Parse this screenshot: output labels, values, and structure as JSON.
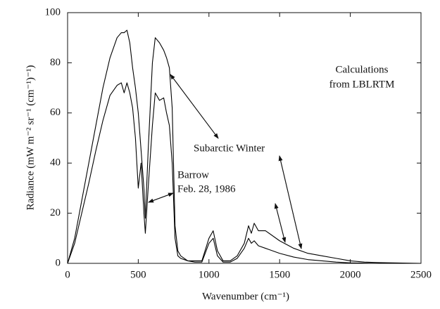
{
  "chart_data": {
    "type": "line",
    "xlabel": "Wavenumber (cm⁻¹)",
    "ylabel": "Radiance (mW m⁻² sr⁻¹ (cm⁻¹)⁻¹)",
    "annotations": [
      "Calculations",
      "from LBLRTM",
      "Feb. 28, 1986"
    ],
    "x": [
      0,
      50,
      100,
      150,
      200,
      250,
      300,
      350,
      380,
      400,
      420,
      440,
      460,
      480,
      500,
      520,
      540,
      550,
      570,
      600,
      620,
      650,
      680,
      700,
      720,
      740,
      760,
      780,
      800,
      850,
      900,
      950,
      1000,
      1030,
      1060,
      1100,
      1150,
      1200,
      1250,
      1280,
      1300,
      1320,
      1350,
      1400,
      1500,
      1600,
      1700,
      1800,
      1900,
      2000,
      2100,
      2200,
      2500
    ],
    "series": [
      {
        "name": "Subarctic Winter",
        "color": "#000000",
        "values": [
          0,
          10,
          25,
          40,
          55,
          70,
          82,
          90,
          92,
          92,
          93,
          88,
          78,
          70,
          60,
          45,
          30,
          18,
          45,
          80,
          90,
          88,
          85,
          82,
          78,
          62,
          15,
          5,
          3,
          1,
          1,
          1,
          10,
          13,
          5,
          1,
          1,
          3,
          8,
          15,
          12,
          16,
          13,
          13,
          9,
          6,
          4,
          3,
          2,
          1,
          0.5,
          0.3,
          0
        ]
      },
      {
        "name": "Barrow",
        "color": "#000000",
        "values": [
          0,
          8,
          20,
          32,
          45,
          57,
          67,
          71,
          72,
          68,
          72,
          68,
          62,
          50,
          30,
          40,
          20,
          12,
          30,
          55,
          68,
          65,
          66,
          60,
          55,
          40,
          10,
          3,
          2,
          1,
          0.5,
          0.5,
          8,
          10,
          3,
          0.5,
          0.5,
          2,
          6,
          10,
          8,
          9,
          7,
          6,
          4,
          2.5,
          1.5,
          1,
          0.5,
          0.2,
          0.1,
          0,
          0
        ]
      }
    ],
    "xlim": [
      0,
      2500
    ],
    "xticks": [
      0,
      500,
      1000,
      1500,
      2000,
      2500
    ],
    "ylim": [
      0,
      100
    ],
    "yticks": [
      0,
      20,
      40,
      60,
      80,
      100
    ],
    "grid": false
  }
}
